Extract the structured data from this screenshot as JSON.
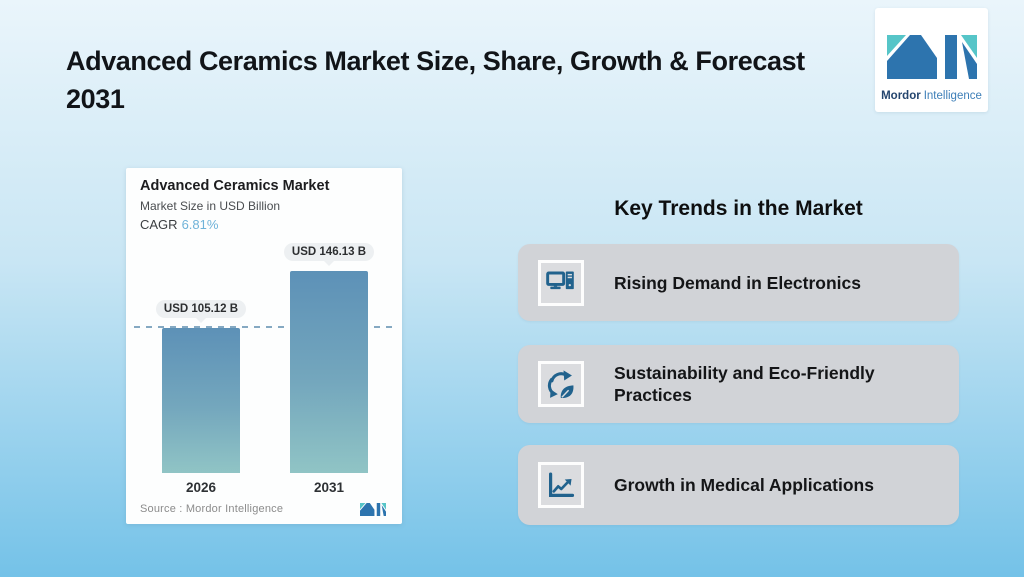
{
  "header": {
    "title": "Advanced Ceramics Market Size, Share, Growth & Forecast 2031"
  },
  "brand": {
    "name_bold": "Mordor",
    "name_regular": "Intelligence",
    "logo_blue": "#2d74ae",
    "logo_teal": "#56c5c8"
  },
  "chart_card": {
    "title": "Advanced Ceramics Market",
    "subtitle": "Market Size in USD Billion",
    "cagr_label": "CAGR",
    "cagr_value": "6.81%",
    "source": "Source :  Mordor Intelligence"
  },
  "chart_data": {
    "type": "bar",
    "title": "Advanced Ceramics Market",
    "subtitle": "Market Size in USD Billion",
    "cagr_percent": 6.81,
    "categories": [
      "2026",
      "2031"
    ],
    "values": [
      105.12,
      146.13
    ],
    "value_labels": [
      "USD 105.12 B",
      "USD 146.13 B"
    ],
    "unit": "USD Billion",
    "ylim": [
      0,
      165
    ],
    "reference_line": 105.12,
    "grid": "single horizontal dashed reference line at 2026 value",
    "legend": "none",
    "bar_color_top": "#5d91b7",
    "bar_color_bottom": "#90c4c5",
    "source": "Source :  Mordor Intelligence"
  },
  "trends": {
    "heading": "Key Trends in the Market",
    "items": [
      {
        "icon": "desktop-computer-icon",
        "label": "Rising Demand in Electronics"
      },
      {
        "icon": "recycle-leaf-icon",
        "label": "Sustainability and Eco-Friendly Practices"
      },
      {
        "icon": "growth-chart-icon",
        "label": "Growth in Medical Applications"
      }
    ]
  },
  "colors": {
    "background_top": "#eaf5fb",
    "background_bottom": "#74c2e8",
    "trend_card_gray": "#d1d3d7",
    "icon_blue": "#21628d",
    "cagr_accent": "#6fb3d9",
    "dashed_line": "#85a9c2"
  }
}
